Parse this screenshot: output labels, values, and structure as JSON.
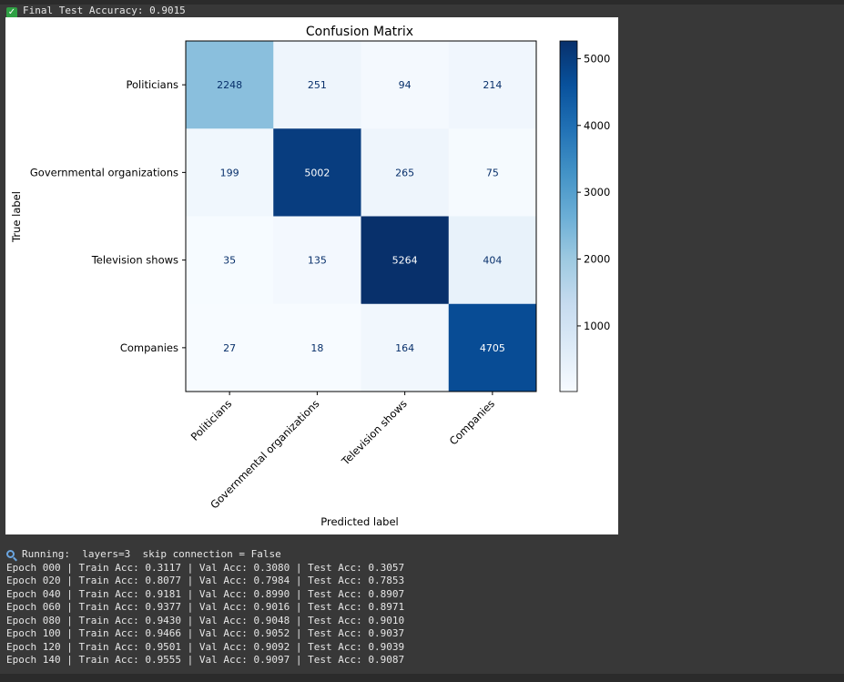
{
  "accuracy_line": "Final Test Accuracy: 0.9015",
  "chart_data": {
    "type": "heatmap",
    "title": "Confusion Matrix",
    "xlabel": "Predicted label",
    "ylabel": "True label",
    "labels": [
      "Politicians",
      "Governmental organizations",
      "Television shows",
      "Companies"
    ],
    "matrix": [
      [
        2248,
        251,
        94,
        214
      ],
      [
        199,
        5002,
        265,
        75
      ],
      [
        35,
        135,
        5264,
        404
      ],
      [
        27,
        18,
        164,
        4705
      ]
    ],
    "colormap": "Blues",
    "colorbar_ticks": [
      1000,
      2000,
      3000,
      4000,
      5000
    ],
    "grid": false
  },
  "running_line": "Running:  layers=3  skip connection = False",
  "log_lines": [
    "Epoch 000 | Train Acc: 0.3117 | Val Acc: 0.3080 | Test Acc: 0.3057",
    "Epoch 020 | Train Acc: 0.8077 | Val Acc: 0.7984 | Test Acc: 0.7853",
    "Epoch 040 | Train Acc: 0.9181 | Val Acc: 0.8990 | Test Acc: 0.8907",
    "Epoch 060 | Train Acc: 0.9377 | Val Acc: 0.9016 | Test Acc: 0.8971",
    "Epoch 080 | Train Acc: 0.9430 | Val Acc: 0.9048 | Test Acc: 0.9010",
    "Epoch 100 | Train Acc: 0.9466 | Val Acc: 0.9052 | Test Acc: 0.9037",
    "Epoch 120 | Train Acc: 0.9501 | Val Acc: 0.9092 | Test Acc: 0.9039",
    "Epoch 140 | Train Acc: 0.9555 | Val Acc: 0.9097 | Test Acc: 0.9087"
  ]
}
